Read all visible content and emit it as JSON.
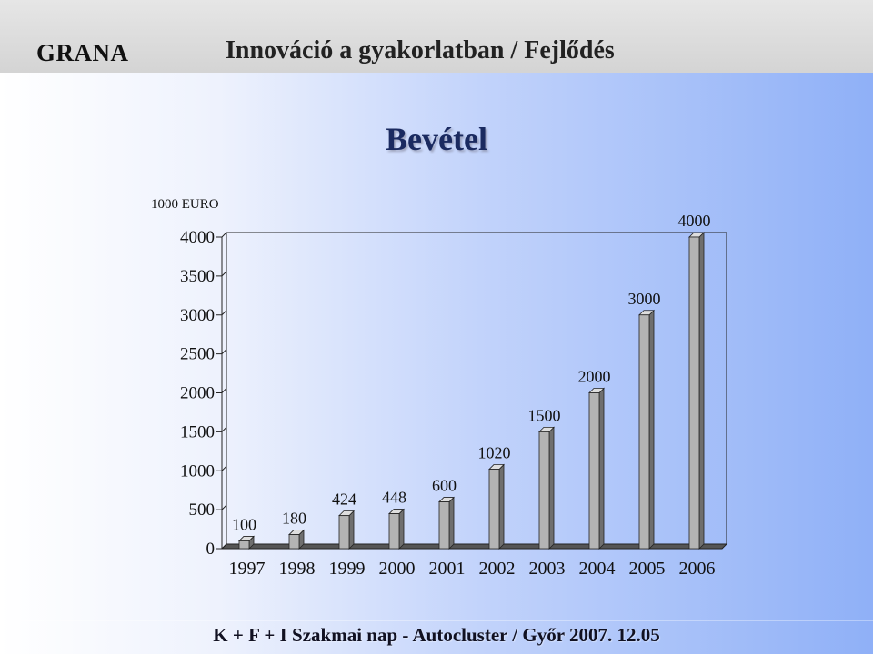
{
  "header": {
    "logo": "GRANA",
    "title": "Innováció a gyakorlatban / Fejlődés"
  },
  "slide_title": "Bevétel",
  "footer": "K + F + I Szakmai nap  -  Autocluster  /  Győr 2007. 12.05",
  "colors": {
    "bar_front": "#b4b4b4",
    "bar_side": "#6f6f6f",
    "bar_top": "#dedede",
    "axis": "#222222"
  },
  "chart_data": {
    "type": "bar",
    "title": "Bevétel",
    "ylabel": "1000 EURO",
    "xlabel": "",
    "categories": [
      "1997",
      "1998",
      "1999",
      "2000",
      "2001",
      "2002",
      "2003",
      "2004",
      "2005",
      "2006"
    ],
    "values": [
      100,
      180,
      424,
      448,
      600,
      1020,
      1500,
      2000,
      3000,
      4000
    ],
    "data_labels": [
      "100",
      "180",
      "424",
      "448",
      "600",
      "1020",
      "1500",
      "2000",
      "3000",
      "4000"
    ],
    "y_ticks": [
      0,
      500,
      1000,
      1500,
      2000,
      2500,
      3000,
      3500,
      4000
    ],
    "ylim": [
      0,
      4000
    ],
    "grid": false,
    "legend": "none",
    "three_d": true
  }
}
